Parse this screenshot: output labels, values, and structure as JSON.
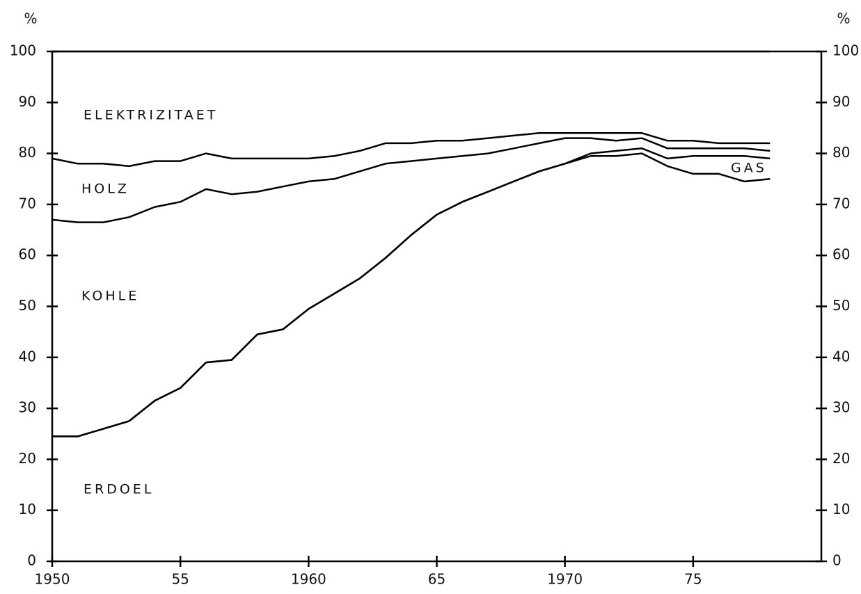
{
  "chart_data": {
    "type": "line",
    "ylabel": "%",
    "y2label": "%",
    "x": [
      1950,
      1951,
      1952,
      1953,
      1954,
      1955,
      1956,
      1957,
      1958,
      1959,
      1960,
      1961,
      1962,
      1963,
      1964,
      1965,
      1966,
      1967,
      1968,
      1969,
      1970,
      1971,
      1972,
      1973,
      1974,
      1975,
      1976,
      1977,
      1978
    ],
    "stacked": true,
    "series": [
      {
        "name": "ERDOEL",
        "color": "#000000",
        "values": [
          24.5,
          24.5,
          26,
          27.5,
          31.5,
          34,
          39,
          39.5,
          44.5,
          45.5,
          49.5,
          52.5,
          55.5,
          59.5,
          64,
          68,
          70.5,
          72.5,
          74.5,
          76.5,
          78,
          79.5,
          79.5,
          80,
          77.5,
          76,
          76,
          74.5,
          75
        ]
      },
      {
        "name": "GAS",
        "color": "#000000",
        "values": [
          0,
          0,
          0,
          0,
          0,
          0,
          0,
          0,
          0,
          0,
          0,
          0,
          0,
          0,
          0,
          0,
          0,
          0,
          0,
          0,
          0,
          0.5,
          1,
          1,
          1.5,
          3.5,
          3.5,
          5,
          4
        ]
      },
      {
        "name": "KOHLE",
        "color": "#000000",
        "values": [
          42.5,
          42,
          40.5,
          40,
          38,
          36.5,
          34,
          32.5,
          28,
          28,
          25,
          22.5,
          21,
          18.5,
          14.5,
          11,
          9,
          7.5,
          6.5,
          5.5,
          5,
          3,
          2,
          2,
          2,
          1.5,
          1.5,
          1.5,
          1.5
        ]
      },
      {
        "name": "HOLZ",
        "color": "#000000",
        "values": [
          12,
          11.5,
          11.5,
          10,
          9,
          8,
          7,
          7,
          6.5,
          5.5,
          4.5,
          4.5,
          4,
          4,
          3.5,
          3.5,
          3,
          3,
          2.5,
          2,
          1,
          1,
          1.5,
          1,
          1.5,
          1.5,
          1,
          1,
          1.5
        ]
      },
      {
        "name": "ELEKTRIZITAET",
        "color": "#000000",
        "values": [
          21,
          22,
          22,
          22.5,
          21.5,
          21.5,
          20,
          21,
          21,
          21,
          21,
          20.5,
          19.5,
          18,
          18,
          17.5,
          17.5,
          17,
          16.5,
          16,
          16,
          16,
          16,
          16,
          17.5,
          17.5,
          18,
          18,
          18
        ]
      }
    ],
    "xlim": [
      1950,
      1980
    ],
    "xticks": [
      1950,
      {
        "value": 1955,
        "label": "55"
      },
      1960,
      {
        "value": 1965,
        "label": "65"
      },
      1970,
      {
        "value": 1975,
        "label": "75"
      }
    ],
    "ylim": [
      0,
      100
    ],
    "yticks": [
      0,
      10,
      20,
      30,
      40,
      50,
      60,
      70,
      80,
      90,
      100
    ],
    "y2lim": [
      0,
      100
    ],
    "y2ticks": [
      0,
      10,
      20,
      30,
      40,
      50,
      60,
      70,
      80,
      90,
      100
    ]
  }
}
